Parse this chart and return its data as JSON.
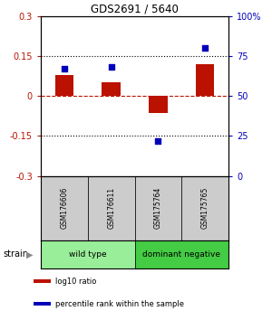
{
  "title": "GDS2691 / 5640",
  "samples": [
    "GSM176606",
    "GSM176611",
    "GSM175764",
    "GSM175765"
  ],
  "log10_ratio": [
    0.08,
    0.05,
    -0.065,
    0.12
  ],
  "percentile_rank": [
    67,
    68,
    22,
    80
  ],
  "ylim_left": [
    -0.3,
    0.3
  ],
  "ylim_right": [
    0,
    100
  ],
  "yticks_left": [
    -0.3,
    -0.15,
    0,
    0.15,
    0.3
  ],
  "yticks_right": [
    0,
    25,
    50,
    75,
    100
  ],
  "ytick_labels_left": [
    "-0.3",
    "-0.15",
    "0",
    "0.15",
    "0.3"
  ],
  "ytick_labels_right": [
    "0",
    "25",
    "50",
    "75",
    "100%"
  ],
  "hlines_black": [
    0.15,
    -0.15
  ],
  "hline_red": 0,
  "bar_color": "#bb1100",
  "dot_color": "#0000bb",
  "groups": [
    {
      "label": "wild type",
      "indices": [
        0,
        1
      ],
      "color": "#99ee99"
    },
    {
      "label": "dominant negative",
      "indices": [
        2,
        3
      ],
      "color": "#44cc44"
    }
  ],
  "strain_label": "strain",
  "legend_items": [
    {
      "color": "#bb1100",
      "label": "log10 ratio"
    },
    {
      "color": "#0000bb",
      "label": "percentile rank within the sample"
    }
  ],
  "bar_width": 0.4,
  "background_color": "#ffffff"
}
